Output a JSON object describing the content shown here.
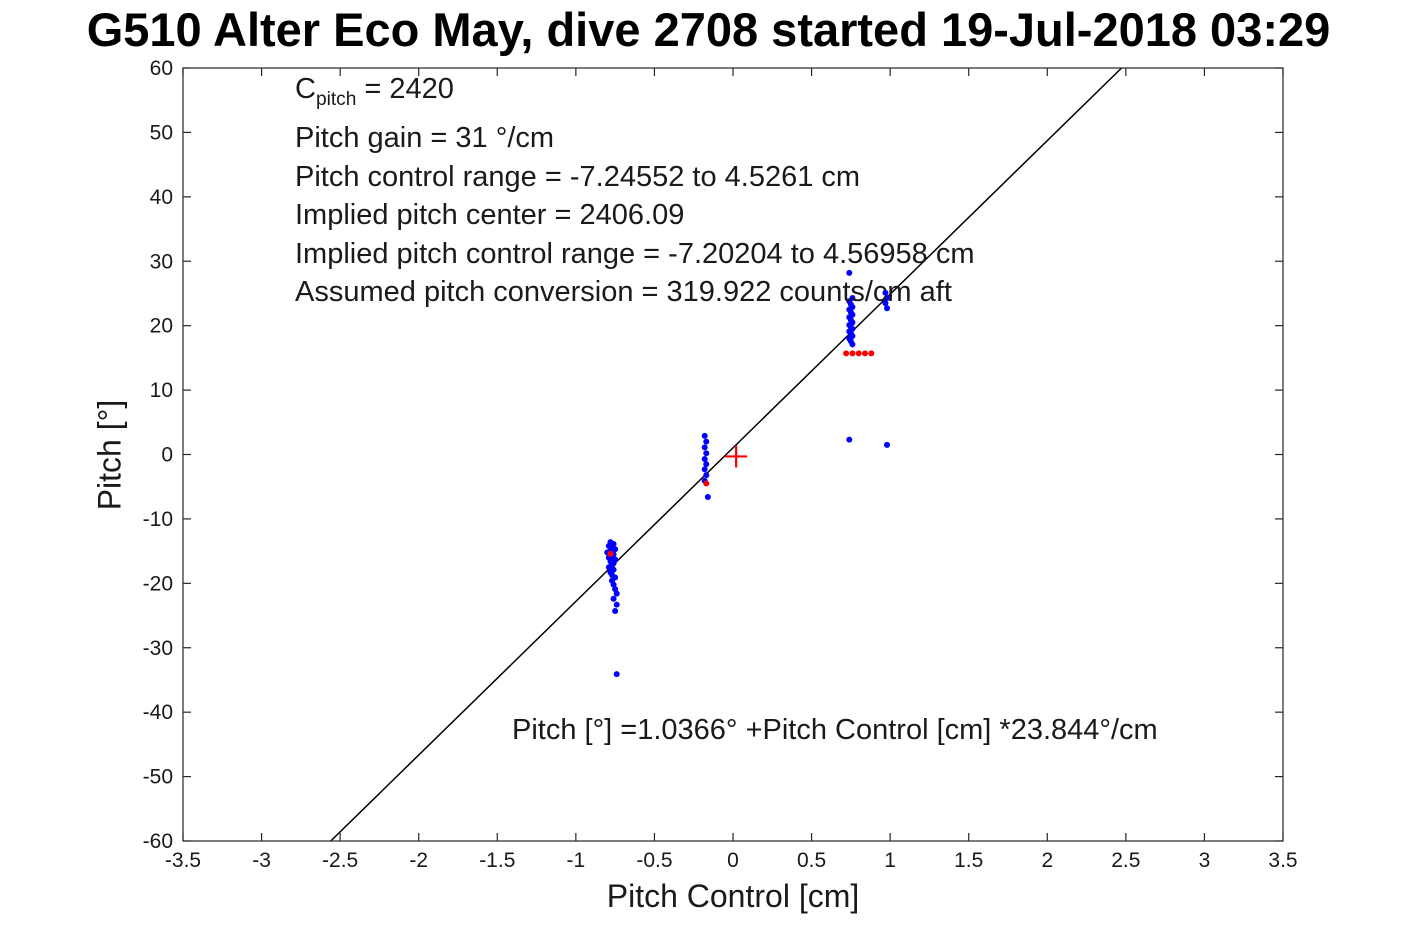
{
  "chart_data": {
    "type": "scatter",
    "title": "G510 Alter Eco May, dive 2708 started 19-Jul-2018 03:29",
    "xlabel": "Pitch Control [cm]",
    "ylabel": "Pitch [°]",
    "xlim": [
      -3.5,
      3.5
    ],
    "ylim": [
      -60,
      60
    ],
    "x_ticks": [
      -3.5,
      -3,
      -2.5,
      -2,
      -1.5,
      -1,
      -0.5,
      0,
      0.5,
      1,
      1.5,
      2,
      2.5,
      3,
      3.5
    ],
    "y_ticks": [
      -60,
      -50,
      -40,
      -30,
      -20,
      -10,
      0,
      10,
      20,
      30,
      40,
      50,
      60
    ],
    "grid": false,
    "legend": "none",
    "colors": {
      "points": "#0000ff",
      "flagged": "#ff0000",
      "fit_line": "#000000",
      "axes": "#262626"
    },
    "fit_line": {
      "intercept": 1.0366,
      "slope": 23.844
    },
    "fit_equation_text": "Pitch [°] =1.0366° +Pitch Control [cm] *23.844°/cm",
    "center_marker": {
      "x": 0.02,
      "y": -0.3,
      "color": "#ff0000",
      "shape": "plus"
    },
    "series": [
      {
        "name": "pitch-observations",
        "color": "#0000ff",
        "marker": "dot",
        "points": [
          [
            -0.78,
            -13.6
          ],
          [
            -0.76,
            -13.9
          ],
          [
            -0.79,
            -14.2
          ],
          [
            -0.77,
            -14.4
          ],
          [
            -0.75,
            -14.7
          ],
          [
            -0.78,
            -15.0
          ],
          [
            -0.8,
            -15.2
          ],
          [
            -0.76,
            -15.5
          ],
          [
            -0.77,
            -15.8
          ],
          [
            -0.79,
            -16.0
          ],
          [
            -0.75,
            -16.3
          ],
          [
            -0.78,
            -16.6
          ],
          [
            -0.76,
            -16.9
          ],
          [
            -0.77,
            -17.2
          ],
          [
            -0.79,
            -17.5
          ],
          [
            -0.76,
            -17.9
          ],
          [
            -0.78,
            -18.3
          ],
          [
            -0.77,
            -18.7
          ],
          [
            -0.75,
            -19.1
          ],
          [
            -0.77,
            -19.6
          ],
          [
            -0.76,
            -20.2
          ],
          [
            -0.75,
            -20.9
          ],
          [
            -0.74,
            -21.6
          ],
          [
            -0.76,
            -22.4
          ],
          [
            -0.74,
            -23.3
          ],
          [
            -0.75,
            -24.3
          ],
          [
            -0.74,
            -34.1
          ],
          [
            -0.18,
            2.9
          ],
          [
            -0.17,
            2.0
          ],
          [
            -0.18,
            1.1
          ],
          [
            -0.17,
            0.2
          ],
          [
            -0.18,
            -0.7
          ],
          [
            -0.17,
            -1.5
          ],
          [
            -0.18,
            -2.3
          ],
          [
            -0.17,
            -3.2
          ],
          [
            -0.18,
            -4.1
          ],
          [
            -0.16,
            -6.6
          ],
          [
            0.74,
            28.2
          ],
          [
            0.76,
            24.3
          ],
          [
            0.74,
            23.8
          ],
          [
            0.75,
            23.3
          ],
          [
            0.76,
            22.9
          ],
          [
            0.74,
            22.5
          ],
          [
            0.75,
            22.1
          ],
          [
            0.76,
            21.7
          ],
          [
            0.74,
            21.3
          ],
          [
            0.75,
            20.9
          ],
          [
            0.76,
            20.5
          ],
          [
            0.74,
            20.1
          ],
          [
            0.75,
            19.8
          ],
          [
            0.76,
            19.5
          ],
          [
            0.74,
            19.1
          ],
          [
            0.75,
            18.8
          ],
          [
            0.76,
            18.4
          ],
          [
            0.74,
            18.0
          ],
          [
            0.75,
            17.6
          ],
          [
            0.76,
            17.1
          ],
          [
            0.97,
            25.1
          ],
          [
            0.98,
            24.3
          ],
          [
            0.97,
            23.5
          ],
          [
            0.98,
            22.7
          ],
          [
            0.74,
            2.3
          ],
          [
            0.98,
            1.5
          ]
        ]
      },
      {
        "name": "flagged-observations",
        "color": "#ff0000",
        "marker": "dot",
        "points": [
          [
            -0.78,
            -15.4
          ],
          [
            -0.17,
            -4.5
          ],
          [
            0.72,
            15.7
          ],
          [
            0.76,
            15.7
          ],
          [
            0.8,
            15.7
          ],
          [
            0.84,
            15.7
          ],
          [
            0.88,
            15.7
          ]
        ]
      }
    ]
  },
  "fit_info": {
    "c_pitch": {
      "base": "C",
      "sub": "pitch",
      "rest": " = 2420"
    },
    "lines": [
      "Pitch gain = 31 °/cm",
      "Pitch control range = -7.24552 to 4.5261 cm",
      "Implied pitch center = 2406.09",
      "Implied pitch control range = -7.20204 to 4.56958 cm",
      "Assumed pitch conversion = 319.922 counts/cm aft"
    ]
  }
}
